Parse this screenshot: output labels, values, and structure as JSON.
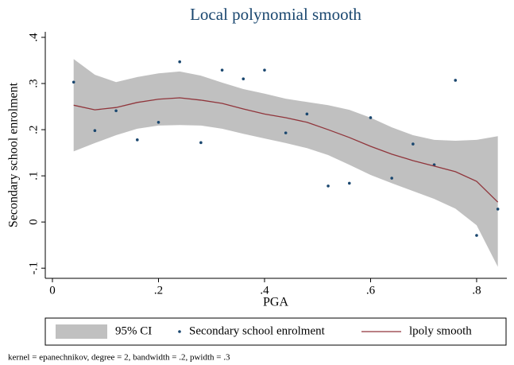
{
  "chart_data": {
    "type": "scatter",
    "title": "Local polynomial smooth",
    "xlabel": "PGA",
    "ylabel": "Secondary school enrolment",
    "note": "kernel = epanechnikov, degree = 2, bandwidth = .2, pwidth = .3",
    "x": [
      0.04,
      0.08,
      0.12,
      0.16,
      0.2,
      0.24,
      0.28,
      0.32,
      0.36,
      0.4,
      0.44,
      0.48,
      0.52,
      0.56,
      0.6,
      0.64,
      0.68,
      0.72,
      0.76,
      0.8,
      0.84
    ],
    "series": [
      {
        "name": "95% CI",
        "type": "band",
        "color": "#c0c0c0",
        "high": [
          0.353,
          0.319,
          0.303,
          0.314,
          0.322,
          0.326,
          0.317,
          0.302,
          0.288,
          0.278,
          0.267,
          0.26,
          0.253,
          0.243,
          0.226,
          0.205,
          0.188,
          0.178,
          0.176,
          0.178,
          0.186
        ],
        "low": [
          0.153,
          0.171,
          0.188,
          0.202,
          0.209,
          0.21,
          0.209,
          0.202,
          0.191,
          0.181,
          0.171,
          0.16,
          0.145,
          0.124,
          0.102,
          0.084,
          0.067,
          0.05,
          0.029,
          -0.007,
          -0.097
        ]
      },
      {
        "name": "Secondary school enrolment",
        "type": "scatter",
        "color": "#1a476f",
        "values": [
          0.303,
          0.198,
          0.241,
          0.178,
          0.216,
          0.347,
          0.172,
          0.329,
          0.31,
          0.329,
          0.193,
          0.234,
          0.078,
          0.084,
          0.226,
          0.095,
          0.169,
          0.124,
          0.307,
          -0.029,
          0.028
        ]
      },
      {
        "name": "lpoly smooth",
        "type": "line",
        "color": "#90353b",
        "values": [
          0.253,
          0.243,
          0.248,
          0.259,
          0.266,
          0.269,
          0.264,
          0.257,
          0.245,
          0.234,
          0.226,
          0.216,
          0.2,
          0.183,
          0.164,
          0.147,
          0.133,
          0.121,
          0.109,
          0.088,
          0.043
        ]
      }
    ],
    "xlim": [
      -0.0135,
      0.857
    ],
    "ylim": [
      -0.122,
      0.412
    ],
    "xticks": [
      0,
      {
        "value": 0.2,
        "label": ".2"
      },
      {
        "value": 0.4,
        "label": ".4"
      },
      {
        "value": 0.6,
        "label": ".6"
      },
      {
        "value": 0.8,
        "label": ".8"
      }
    ],
    "yticks": [
      {
        "value": -0.1,
        "label": "-.1"
      },
      0,
      {
        "value": 0.1,
        "label": ".1"
      },
      {
        "value": 0.2,
        "label": ".2"
      },
      {
        "value": 0.3,
        "label": ".3"
      },
      {
        "value": 0.4,
        "label": ".4"
      }
    ],
    "legend": "bottom"
  }
}
